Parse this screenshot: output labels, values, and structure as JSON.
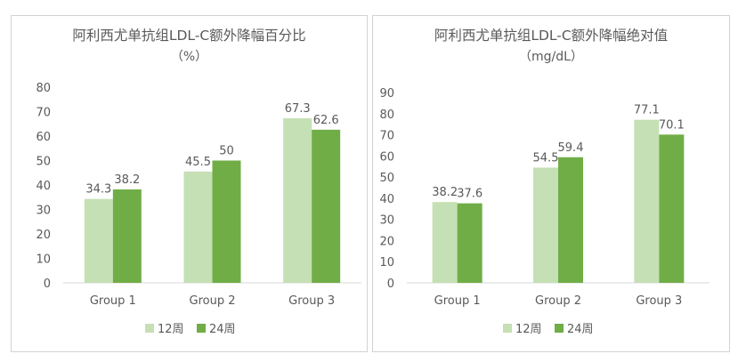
{
  "colors": {
    "series_12": "#c5e0b4",
    "series_24": "#70ad47",
    "axis": "#d9d9d9",
    "text": "#595959"
  },
  "chart_data": [
    {
      "type": "bar",
      "title": "阿利西尤单抗组LDL-C额外降幅百分比",
      "subtitle": "（%）",
      "categories": [
        "Group 1",
        "Group 2",
        "Group 3"
      ],
      "series": [
        {
          "name": "12周",
          "values": [
            34.3,
            45.5,
            67.3
          ],
          "labels": [
            "34.3",
            "45.5",
            "67.3"
          ]
        },
        {
          "name": "24周",
          "values": [
            38.2,
            50,
            62.6
          ],
          "labels": [
            "38.2",
            "50",
            "62.6"
          ]
        }
      ],
      "yticks": [
        "0",
        "10",
        "20",
        "30",
        "40",
        "50",
        "60",
        "70",
        "80"
      ],
      "ylim": [
        0,
        80
      ],
      "grid": false,
      "legend": "bottom"
    },
    {
      "type": "bar",
      "title": "阿利西尤单抗组LDL-C额外降幅绝对值",
      "subtitle": "（mg/dL）",
      "categories": [
        "Group 1",
        "Group 2",
        "Group 3"
      ],
      "series": [
        {
          "name": "12周",
          "values": [
            38.2,
            54.5,
            77.1
          ],
          "labels": [
            "38.2",
            "54.5",
            "77.1"
          ]
        },
        {
          "name": "24周",
          "values": [
            37.6,
            59.4,
            70.1
          ],
          "labels": [
            "37.6",
            "59.4",
            "70.1"
          ]
        }
      ],
      "yticks": [
        "0",
        "10",
        "20",
        "30",
        "40",
        "50",
        "60",
        "70",
        "80",
        "90"
      ],
      "ylim": [
        0,
        90
      ],
      "grid": false,
      "legend": "bottom"
    }
  ]
}
